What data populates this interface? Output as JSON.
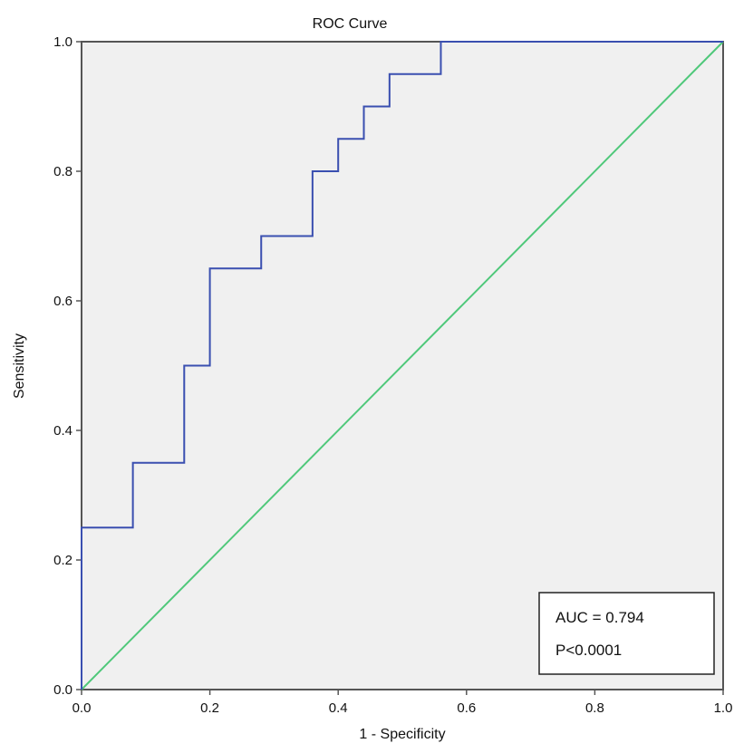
{
  "chart_data": {
    "type": "line",
    "title": "ROC Curve",
    "xlabel": "1 - Specificity",
    "ylabel": "Sensitivity",
    "xlim": [
      0,
      1
    ],
    "ylim": [
      0,
      1
    ],
    "x_ticks": [
      "0.0",
      "0.2",
      "0.4",
      "0.6",
      "0.8",
      "1.0"
    ],
    "y_ticks": [
      "0.0",
      "0.2",
      "0.4",
      "0.6",
      "0.8",
      "1.0"
    ],
    "grid": false,
    "background_color": "#f0f0f0",
    "series": [
      {
        "color": "#3a4fb0",
        "style": "step",
        "x": [
          0.0,
          0.0,
          0.08,
          0.08,
          0.16,
          0.16,
          0.2,
          0.2,
          0.28,
          0.28,
          0.36,
          0.36,
          0.4,
          0.4,
          0.44,
          0.44,
          0.48,
          0.48,
          0.56,
          0.56,
          1.0
        ],
        "y": [
          0.0,
          0.25,
          0.25,
          0.35,
          0.35,
          0.5,
          0.5,
          0.65,
          0.65,
          0.7,
          0.7,
          0.8,
          0.8,
          0.85,
          0.85,
          0.9,
          0.9,
          0.95,
          0.95,
          1.0,
          1.0
        ]
      },
      {
        "color": "#4fc87a",
        "style": "reference",
        "x": [
          0,
          1
        ],
        "y": [
          0,
          1
        ]
      }
    ],
    "annotations": {
      "auc": "AUC = 0.794",
      "p_value": "P<0.0001"
    }
  }
}
